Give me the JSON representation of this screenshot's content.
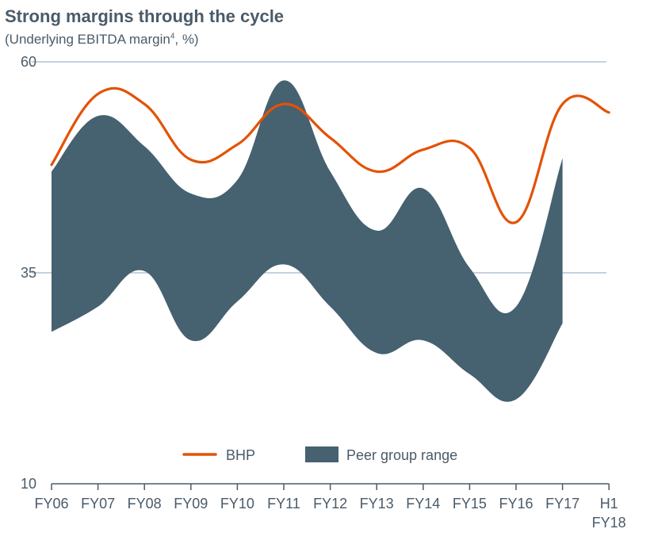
{
  "title": "Strong margins through the cycle",
  "subtitle": {
    "text": "(Underlying EBITDA margin",
    "footnote": "4",
    "tail": ", %)"
  },
  "colors": {
    "bhp": "#E35205",
    "peer": "#466170",
    "grid": "#8FA3C2",
    "text": "#4a5b69"
  },
  "chart_data": {
    "type": "line",
    "title": "Strong margins through the cycle",
    "subtitle": "(Underlying EBITDA margin4, %)",
    "categories": [
      "FY06",
      "FY07",
      "FY08",
      "FY09",
      "FY10",
      "FY11",
      "FY12",
      "FY13",
      "FY14",
      "FY15",
      "FY16",
      "FY17",
      "H1 FY18"
    ],
    "category_lines": [
      [
        "FY06"
      ],
      [
        "FY07"
      ],
      [
        "FY08"
      ],
      [
        "FY09"
      ],
      [
        "FY10"
      ],
      [
        "FY11"
      ],
      [
        "FY12"
      ],
      [
        "FY13"
      ],
      [
        "FY14"
      ],
      [
        "FY15"
      ],
      [
        "FY16"
      ],
      [
        "FY17"
      ],
      [
        "H1",
        "FY18"
      ]
    ],
    "ylim": [
      10,
      60
    ],
    "yticks": [
      10,
      35,
      60
    ],
    "legend_position": "bottom",
    "grid": true,
    "series": [
      {
        "name": "BHP",
        "kind": "line",
        "values": [
          47.8,
          56.2,
          55.0,
          48.4,
          50.2,
          55.0,
          51.0,
          47.0,
          49.6,
          49.8,
          41.0,
          55.0,
          54.0
        ]
      },
      {
        "name": "Peer group range",
        "kind": "range",
        "upper": [
          47.0,
          53.6,
          50.0,
          44.4,
          46.0,
          57.8,
          47.0,
          40.0,
          45.0,
          35.6,
          31.0,
          48.6,
          null
        ],
        "lower": [
          28.0,
          31.0,
          35.2,
          27.0,
          31.6,
          36.0,
          31.0,
          25.5,
          27.0,
          23.0,
          20.0,
          29.0,
          null
        ]
      }
    ]
  }
}
